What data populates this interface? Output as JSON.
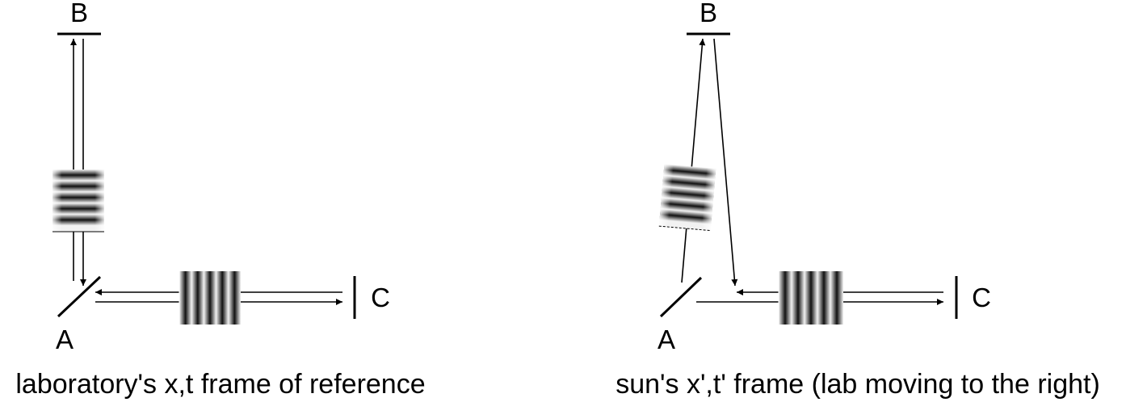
{
  "left_panel": {
    "label_b": "B",
    "label_a": "A",
    "label_c": "C",
    "caption": "laboratory's x,t frame of reference"
  },
  "right_panel": {
    "label_b": "B",
    "label_a": "A",
    "label_c": "C",
    "caption": "sun's x',t' frame (lab moving to the right)"
  }
}
